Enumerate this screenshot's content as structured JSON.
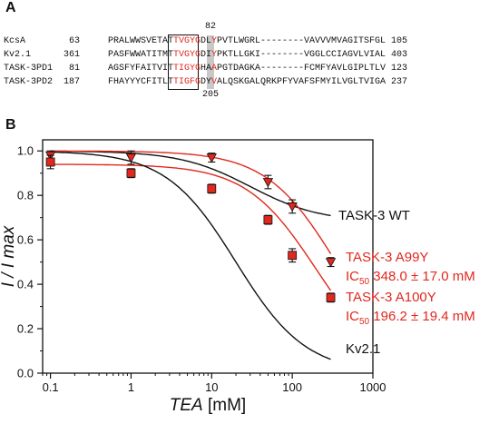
{
  "panel_a": {
    "letter": "A",
    "rows": [
      {
        "name": "KcsA",
        "start": "63",
        "pre": "PRALWWSVETAT",
        "motif": "TVGYG",
        "mid": "DL",
        "res": "Y",
        "tail": "PVTLWGRL--------VAVVVMVAGITSFGL",
        "end": "105"
      },
      {
        "name": "Kv2.1",
        "start": "361",
        "pre": "PASFWWATITMT",
        "motif": "TVGYG",
        "mid": "DI",
        "res": "Y",
        "tail": "PKTLLGKI--------VGGLCCIAGVLVIAL",
        "end": "403"
      },
      {
        "name": "TASK-3PD1",
        "start": "81",
        "pre": "AGSFYFAITVIT",
        "motif": "TIGYG",
        "mid": "HA",
        "res": "A",
        "tail": "PGTDAGKA--------FCMFYAVLGIPLTLV",
        "end": "123"
      },
      {
        "name": "TASK-3PD2",
        "start": "187",
        "pre": "FHAYYYCFITLT",
        "motif": "TIGFG",
        "mid": "DY",
        "res": "V",
        "tail": "ALQSKGALQRKPFYVAFSFMYILVGLTVIGA",
        "end": "237"
      }
    ],
    "mark_top": "82",
    "mark_bottom": "205"
  },
  "chart_data": {
    "type": "scatter",
    "panel_letter": "B",
    "xlabel_italic": "TEA",
    "xlabel_unit": " [mM]",
    "ylabel": "I / I max",
    "xscale": "log",
    "xlim": [
      0.08,
      1000
    ],
    "ylim": [
      0,
      1.05
    ],
    "xticks": [
      0.1,
      1,
      10,
      100,
      1000
    ],
    "xtick_labels": [
      "0.1",
      "1",
      "10",
      "100",
      "1000"
    ],
    "yticks": [
      0,
      0.2,
      0.4,
      0.6,
      0.8,
      1.0
    ],
    "ytick_labels": [
      "0.0",
      "0.2",
      "0.4",
      "0.6",
      "0.8",
      "1.0"
    ],
    "grid": false,
    "series": [
      {
        "marker": "triangle-down",
        "color": "#e0281e",
        "x": [
          0.1,
          1,
          10,
          50,
          100,
          300
        ],
        "y": [
          0.98,
          0.97,
          0.97,
          0.86,
          0.75,
          0.5
        ],
        "err": [
          0.02,
          0.03,
          0.02,
          0.03,
          0.03,
          0.02
        ]
      },
      {
        "marker": "square",
        "color": "#e0281e",
        "x": [
          0.1,
          1,
          10,
          50,
          100,
          300
        ],
        "y": [
          0.95,
          0.9,
          0.83,
          0.69,
          0.53,
          0.34
        ],
        "err": [
          0.03,
          0.02,
          0.02,
          0.02,
          0.03,
          0.02
        ]
      }
    ],
    "curves": [
      {
        "id": "task3-wt",
        "color": "#111111",
        "bottom": 0.68,
        "top": 1.0,
        "ic50": 30,
        "hill": 1.0
      },
      {
        "id": "a99y",
        "color": "#e0281e",
        "bottom": 0.0,
        "top": 1.0,
        "ic50": 348,
        "hill": 1.0
      },
      {
        "id": "a100y",
        "color": "#e0281e",
        "bottom": 0.0,
        "top": 0.94,
        "ic50": 196.2,
        "hill": 1.0
      },
      {
        "id": "kv21",
        "color": "#111111",
        "bottom": 0.0,
        "top": 1.0,
        "ic50": 20,
        "hill": 1.0
      }
    ],
    "annotations": {
      "wt": "TASK-3 WT",
      "a99y": "TASK-3 A99Y",
      "a99y_ic_sub": "50",
      "a99y_ic_val": " 348.0 ± 17.0 mM",
      "a100y": "TASK-3 A100Y",
      "a100y_ic_sub": "50",
      "a100y_ic_val": " 196.2 ± 19.4 mM",
      "kv21": "Kv2.1",
      "ic": "IC"
    }
  }
}
